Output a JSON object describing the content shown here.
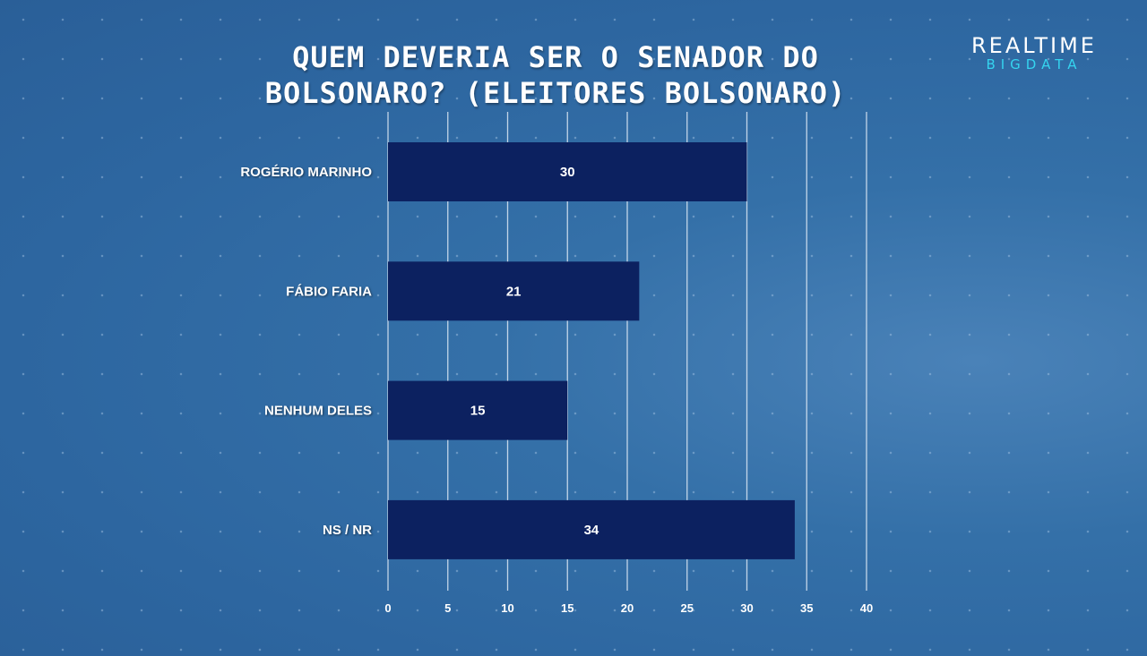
{
  "logo": {
    "line1": "REALTIME",
    "line2": "BIGDATA"
  },
  "chart_data": {
    "type": "bar",
    "orientation": "horizontal",
    "title": "QUEM DEVERIA SER O SENADOR DO BOLSONARO? (ELEITORES BOLSONARO)",
    "title_lines": [
      "QUEM DEVERIA SER O SENADOR DO",
      "BOLSONARO? (ELEITORES BOLSONARO)"
    ],
    "categories": [
      "ROGÉRIO MARINHO",
      "FÁBIO FARIA",
      "NENHUM DELES",
      "NS / NR"
    ],
    "values": [
      30,
      21,
      15,
      34
    ],
    "xlim": [
      0,
      40
    ],
    "xticks": [
      0,
      5,
      10,
      15,
      20,
      25,
      30,
      35,
      40
    ],
    "xlabel": "",
    "ylabel": "",
    "grid": true,
    "legend": "none",
    "colors": {
      "bar": "#0c2160",
      "grid": "#dce8f4"
    }
  }
}
